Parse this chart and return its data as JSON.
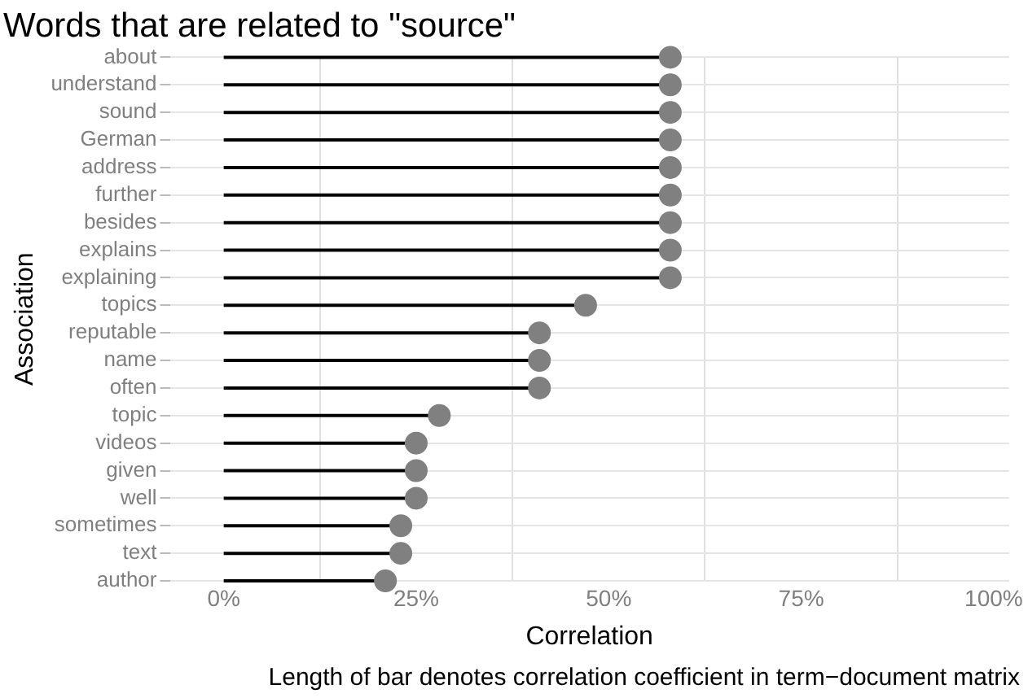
{
  "chart_data": {
    "type": "lollipop",
    "orientation": "horizontal",
    "title": "Words that are related to \"source\"",
    "xlabel": "Correlation",
    "ylabel": "Association",
    "annotations": [
      "Length of bar denotes correlation coefficient in term−document matrix"
    ],
    "categories": [
      "about",
      "understand",
      "sound",
      "German",
      "address",
      "further",
      "besides",
      "explains",
      "explaining",
      "topics",
      "reputable",
      "name",
      "often",
      "topic",
      "videos",
      "given",
      "well",
      "sometimes",
      "text",
      "author"
    ],
    "values": [
      0.58,
      0.58,
      0.58,
      0.58,
      0.58,
      0.58,
      0.58,
      0.58,
      0.58,
      0.47,
      0.41,
      0.41,
      0.41,
      0.28,
      0.25,
      0.25,
      0.25,
      0.23,
      0.23,
      0.21
    ],
    "color": "#808080",
    "xlim": [
      -0.07,
      1.02
    ],
    "xticks": [
      {
        "value": 0,
        "label": "0%"
      },
      {
        "value": 0.125,
        "label": null
      },
      {
        "value": 0.25,
        "label": "25%"
      },
      {
        "value": 0.375,
        "label": null
      },
      {
        "value": 0.5,
        "label": "50%"
      },
      {
        "value": 0.625,
        "label": null
      },
      {
        "value": 0.75,
        "label": "75%"
      },
      {
        "value": 0.875,
        "label": null
      },
      {
        "value": 1,
        "label": "100%"
      }
    ],
    "grid": true,
    "marker": "circle",
    "legend": false
  }
}
